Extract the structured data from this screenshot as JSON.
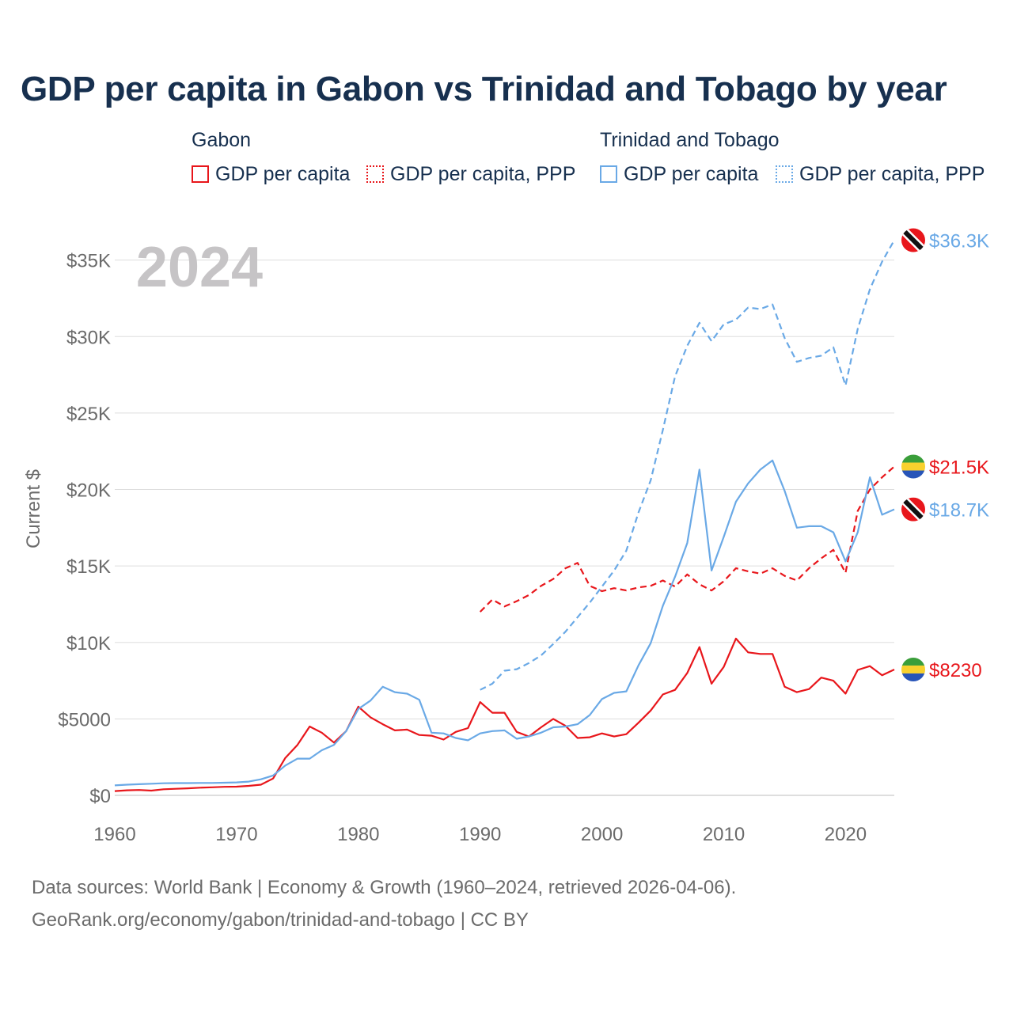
{
  "title": "GDP per capita in Gabon vs Trinidad and Tobago by year",
  "legend": {
    "groups": [
      {
        "country": "Gabon",
        "items": [
          "GDP per capita",
          "GDP per capita, PPP"
        ]
      },
      {
        "country": "Trinidad and Tobago",
        "items": [
          "GDP per capita",
          "GDP per capita, PPP"
        ]
      }
    ]
  },
  "year_watermark": "2024",
  "footer": {
    "line1": "Data sources: World Bank | Economy & Growth (1960–2024, retrieved 2026-04-06).",
    "line2": "GeoRank.org/economy/gabon/trinidad-and-tobago | CC BY"
  },
  "colors": {
    "gabon": "#e8161b",
    "trinidad": "#6aa9e6",
    "text": "#17304f",
    "axis_text": "#6b6b6b"
  },
  "chart_data": {
    "type": "line",
    "ylabel": "Current $",
    "xlim": [
      1960,
      2024
    ],
    "ylim": [
      0,
      37000
    ],
    "x_ticks": [
      1960,
      1970,
      1980,
      1990,
      2000,
      2010,
      2020
    ],
    "y_ticks": [
      {
        "value": 0,
        "label": "$0"
      },
      {
        "value": 5000,
        "label": "$5000"
      },
      {
        "value": 10000,
        "label": "$10K"
      },
      {
        "value": 15000,
        "label": "$15K"
      },
      {
        "value": 20000,
        "label": "$20K"
      },
      {
        "value": 25000,
        "label": "$25K"
      },
      {
        "value": 30000,
        "label": "$30K"
      },
      {
        "value": 35000,
        "label": "$35K"
      }
    ],
    "series": [
      {
        "name": "Gabon GDP per capita",
        "country": "Gabon",
        "color": "#e8161b",
        "dashed": false,
        "end_label": "$8230",
        "end_icon": "gabon-flag-icon",
        "points": [
          [
            1960,
            280
          ],
          [
            1961,
            330
          ],
          [
            1962,
            350
          ],
          [
            1963,
            310
          ],
          [
            1964,
            400
          ],
          [
            1965,
            430
          ],
          [
            1966,
            460
          ],
          [
            1967,
            500
          ],
          [
            1968,
            530
          ],
          [
            1969,
            560
          ],
          [
            1970,
            570
          ],
          [
            1971,
            620
          ],
          [
            1972,
            700
          ],
          [
            1973,
            1100
          ],
          [
            1974,
            2450
          ],
          [
            1975,
            3300
          ],
          [
            1976,
            4500
          ],
          [
            1977,
            4100
          ],
          [
            1978,
            3450
          ],
          [
            1979,
            4200
          ],
          [
            1980,
            5800
          ],
          [
            1981,
            5100
          ],
          [
            1982,
            4650
          ],
          [
            1983,
            4250
          ],
          [
            1984,
            4300
          ],
          [
            1985,
            3950
          ],
          [
            1986,
            3900
          ],
          [
            1987,
            3650
          ],
          [
            1988,
            4150
          ],
          [
            1989,
            4400
          ],
          [
            1990,
            6100
          ],
          [
            1991,
            5400
          ],
          [
            1992,
            5400
          ],
          [
            1993,
            4150
          ],
          [
            1994,
            3850
          ],
          [
            1995,
            4450
          ],
          [
            1996,
            5000
          ],
          [
            1997,
            4550
          ],
          [
            1998,
            3750
          ],
          [
            1999,
            3800
          ],
          [
            2000,
            4050
          ],
          [
            2001,
            3850
          ],
          [
            2002,
            4000
          ],
          [
            2003,
            4750
          ],
          [
            2004,
            5550
          ],
          [
            2005,
            6600
          ],
          [
            2006,
            6900
          ],
          [
            2007,
            8000
          ],
          [
            2008,
            9700
          ],
          [
            2009,
            7300
          ],
          [
            2010,
            8400
          ],
          [
            2011,
            10250
          ],
          [
            2012,
            9350
          ],
          [
            2013,
            9250
          ],
          [
            2014,
            9250
          ],
          [
            2015,
            7100
          ],
          [
            2016,
            6750
          ],
          [
            2017,
            6950
          ],
          [
            2018,
            7700
          ],
          [
            2019,
            7500
          ],
          [
            2020,
            6650
          ],
          [
            2021,
            8200
          ],
          [
            2022,
            8450
          ],
          [
            2023,
            7850
          ],
          [
            2024,
            8230
          ]
        ]
      },
      {
        "name": "Gabon GDP per capita, PPP",
        "country": "Gabon",
        "color": "#e8161b",
        "dashed": true,
        "end_label": "$21.5K",
        "end_icon": "gabon-flag-icon",
        "points": [
          [
            1990,
            12000
          ],
          [
            1991,
            12800
          ],
          [
            1992,
            12350
          ],
          [
            1993,
            12700
          ],
          [
            1994,
            13100
          ],
          [
            1995,
            13700
          ],
          [
            1996,
            14150
          ],
          [
            1997,
            14850
          ],
          [
            1998,
            15200
          ],
          [
            1999,
            13700
          ],
          [
            2000,
            13350
          ],
          [
            2001,
            13550
          ],
          [
            2002,
            13400
          ],
          [
            2003,
            13600
          ],
          [
            2004,
            13700
          ],
          [
            2005,
            14050
          ],
          [
            2006,
            13650
          ],
          [
            2007,
            14450
          ],
          [
            2008,
            13800
          ],
          [
            2009,
            13400
          ],
          [
            2010,
            14000
          ],
          [
            2011,
            14850
          ],
          [
            2012,
            14650
          ],
          [
            2013,
            14500
          ],
          [
            2014,
            14850
          ],
          [
            2015,
            14350
          ],
          [
            2016,
            14050
          ],
          [
            2017,
            14850
          ],
          [
            2018,
            15500
          ],
          [
            2019,
            16050
          ],
          [
            2020,
            14550
          ],
          [
            2021,
            18600
          ],
          [
            2022,
            20000
          ],
          [
            2023,
            20800
          ],
          [
            2024,
            21500
          ]
        ]
      },
      {
        "name": "Trinidad and Tobago GDP per capita",
        "country": "Trinidad and Tobago",
        "color": "#6aa9e6",
        "dashed": false,
        "end_label": "$18.7K",
        "end_icon": "trinidad-flag-icon",
        "points": [
          [
            1960,
            650
          ],
          [
            1961,
            700
          ],
          [
            1962,
            730
          ],
          [
            1963,
            760
          ],
          [
            1964,
            790
          ],
          [
            1965,
            800
          ],
          [
            1966,
            800
          ],
          [
            1967,
            810
          ],
          [
            1968,
            810
          ],
          [
            1969,
            830
          ],
          [
            1970,
            850
          ],
          [
            1971,
            900
          ],
          [
            1972,
            1050
          ],
          [
            1973,
            1300
          ],
          [
            1974,
            1950
          ],
          [
            1975,
            2400
          ],
          [
            1976,
            2400
          ],
          [
            1977,
            2950
          ],
          [
            1978,
            3300
          ],
          [
            1979,
            4200
          ],
          [
            1980,
            5650
          ],
          [
            1981,
            6200
          ],
          [
            1982,
            7100
          ],
          [
            1983,
            6750
          ],
          [
            1984,
            6650
          ],
          [
            1985,
            6250
          ],
          [
            1986,
            4100
          ],
          [
            1987,
            4050
          ],
          [
            1988,
            3750
          ],
          [
            1989,
            3600
          ],
          [
            1990,
            4050
          ],
          [
            1991,
            4200
          ],
          [
            1992,
            4250
          ],
          [
            1993,
            3700
          ],
          [
            1994,
            3850
          ],
          [
            1995,
            4100
          ],
          [
            1996,
            4450
          ],
          [
            1997,
            4500
          ],
          [
            1998,
            4650
          ],
          [
            1999,
            5250
          ],
          [
            2000,
            6300
          ],
          [
            2001,
            6700
          ],
          [
            2002,
            6800
          ],
          [
            2003,
            8500
          ],
          [
            2004,
            9950
          ],
          [
            2005,
            12400
          ],
          [
            2006,
            14300
          ],
          [
            2007,
            16500
          ],
          [
            2008,
            21300
          ],
          [
            2009,
            14700
          ],
          [
            2010,
            16900
          ],
          [
            2011,
            19200
          ],
          [
            2012,
            20400
          ],
          [
            2013,
            21300
          ],
          [
            2014,
            21900
          ],
          [
            2015,
            19900
          ],
          [
            2016,
            17500
          ],
          [
            2017,
            17600
          ],
          [
            2018,
            17600
          ],
          [
            2019,
            17200
          ],
          [
            2020,
            15300
          ],
          [
            2021,
            17200
          ],
          [
            2022,
            20800
          ],
          [
            2023,
            18350
          ],
          [
            2024,
            18700
          ]
        ]
      },
      {
        "name": "Trinidad and Tobago GDP per capita, PPP",
        "country": "Trinidad and Tobago",
        "color": "#6aa9e6",
        "dashed": true,
        "end_label": "$36.3K",
        "end_icon": "trinidad-flag-icon",
        "points": [
          [
            1990,
            6900
          ],
          [
            1991,
            7300
          ],
          [
            1992,
            8150
          ],
          [
            1993,
            8250
          ],
          [
            1994,
            8650
          ],
          [
            1995,
            9150
          ],
          [
            1996,
            9900
          ],
          [
            1997,
            10700
          ],
          [
            1998,
            11650
          ],
          [
            1999,
            12600
          ],
          [
            2000,
            13650
          ],
          [
            2001,
            14700
          ],
          [
            2002,
            16000
          ],
          [
            2003,
            18500
          ],
          [
            2004,
            20600
          ],
          [
            2005,
            23900
          ],
          [
            2006,
            27400
          ],
          [
            2007,
            29400
          ],
          [
            2008,
            30900
          ],
          [
            2009,
            29700
          ],
          [
            2010,
            30800
          ],
          [
            2011,
            31100
          ],
          [
            2012,
            31900
          ],
          [
            2013,
            31800
          ],
          [
            2014,
            32100
          ],
          [
            2015,
            29900
          ],
          [
            2016,
            28350
          ],
          [
            2017,
            28600
          ],
          [
            2018,
            28750
          ],
          [
            2019,
            29300
          ],
          [
            2020,
            26800
          ],
          [
            2021,
            30500
          ],
          [
            2022,
            33100
          ],
          [
            2023,
            34900
          ],
          [
            2024,
            36300
          ]
        ]
      }
    ]
  }
}
